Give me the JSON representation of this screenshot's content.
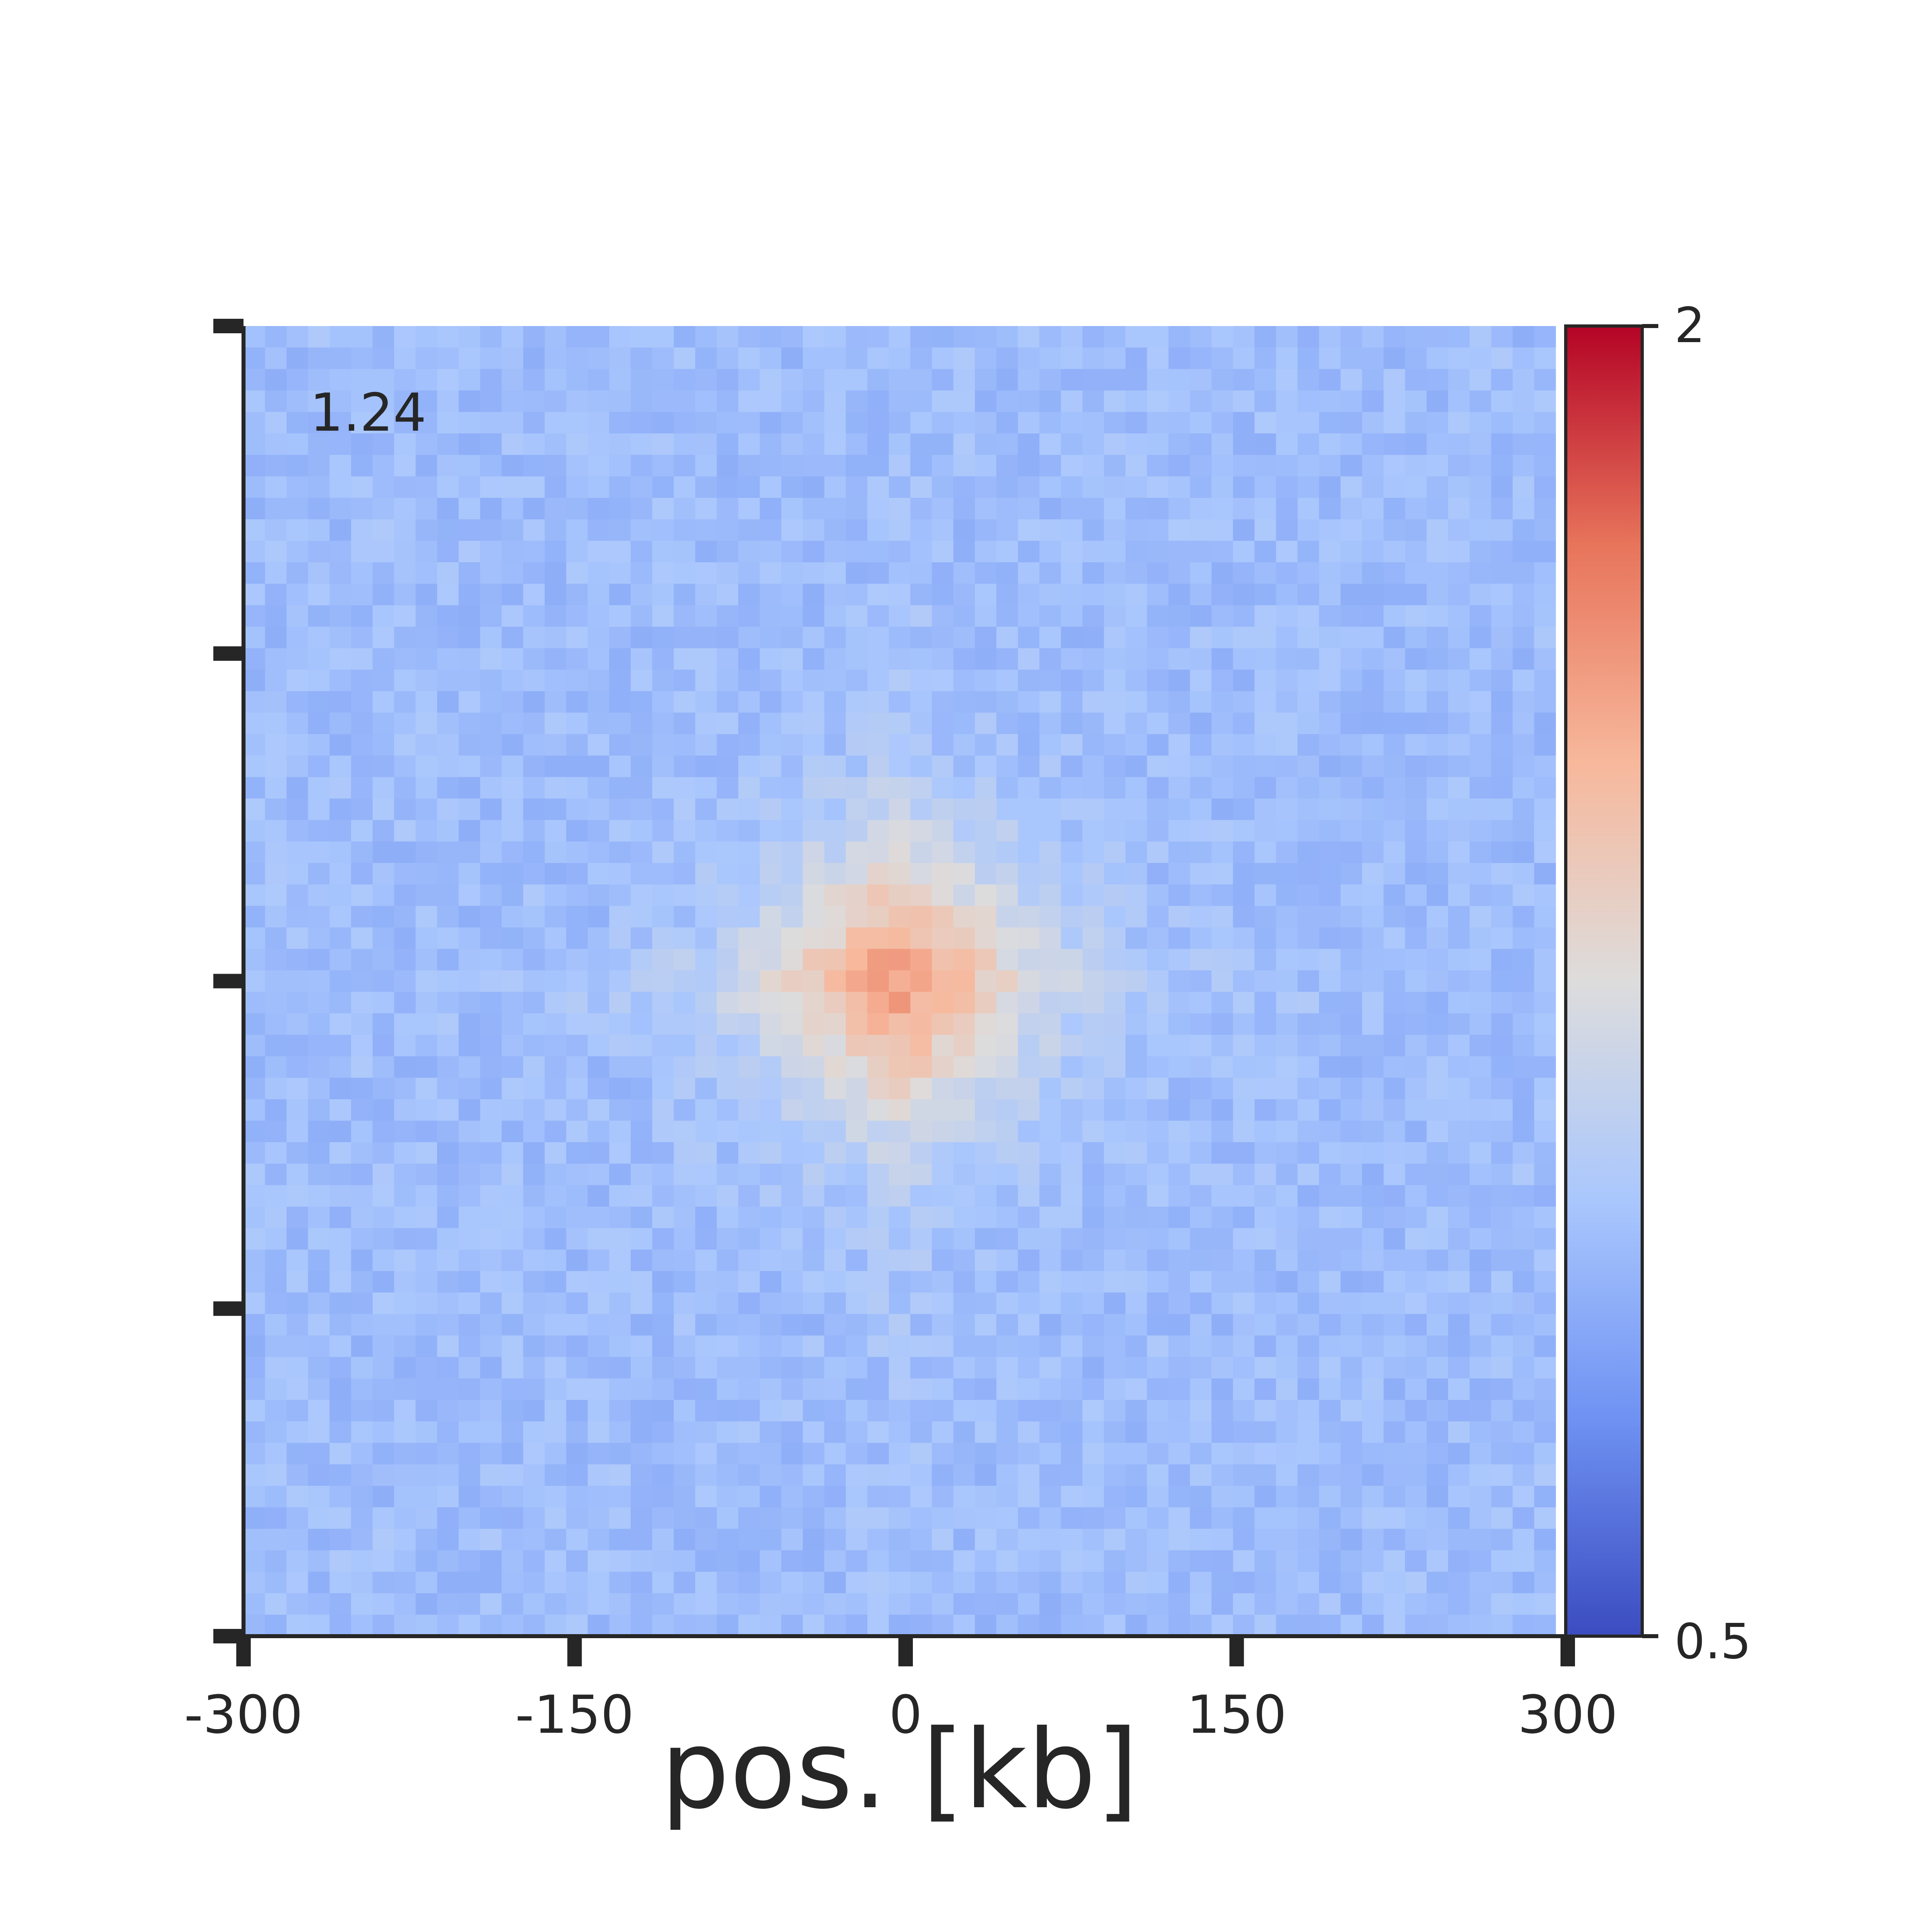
{
  "chart_data": {
    "type": "heatmap",
    "title": "",
    "xlabel": "pos. [kb]",
    "ylabel": "",
    "xlim": [
      -300,
      300
    ],
    "ylim": [
      -300,
      300
    ],
    "x_ticks": [
      "-300",
      "-150",
      "0",
      "150",
      "300"
    ],
    "y_tick_count": 5,
    "grid": false,
    "annotation": "1.24",
    "colormap": "coolwarm",
    "colorbar": {
      "min_label": "0.5",
      "max_label": "2",
      "min": 0.5,
      "max": 2
    },
    "grid_size": [
      61,
      61
    ],
    "center_value": 1.6,
    "background_value": 0.95,
    "noise_amplitude": 0.07,
    "colormap_stops": [
      "#3b4cc0",
      "#6f92f3",
      "#aac7fd",
      "#dddcdc",
      "#f7b89c",
      "#e7745b",
      "#b40426"
    ]
  }
}
